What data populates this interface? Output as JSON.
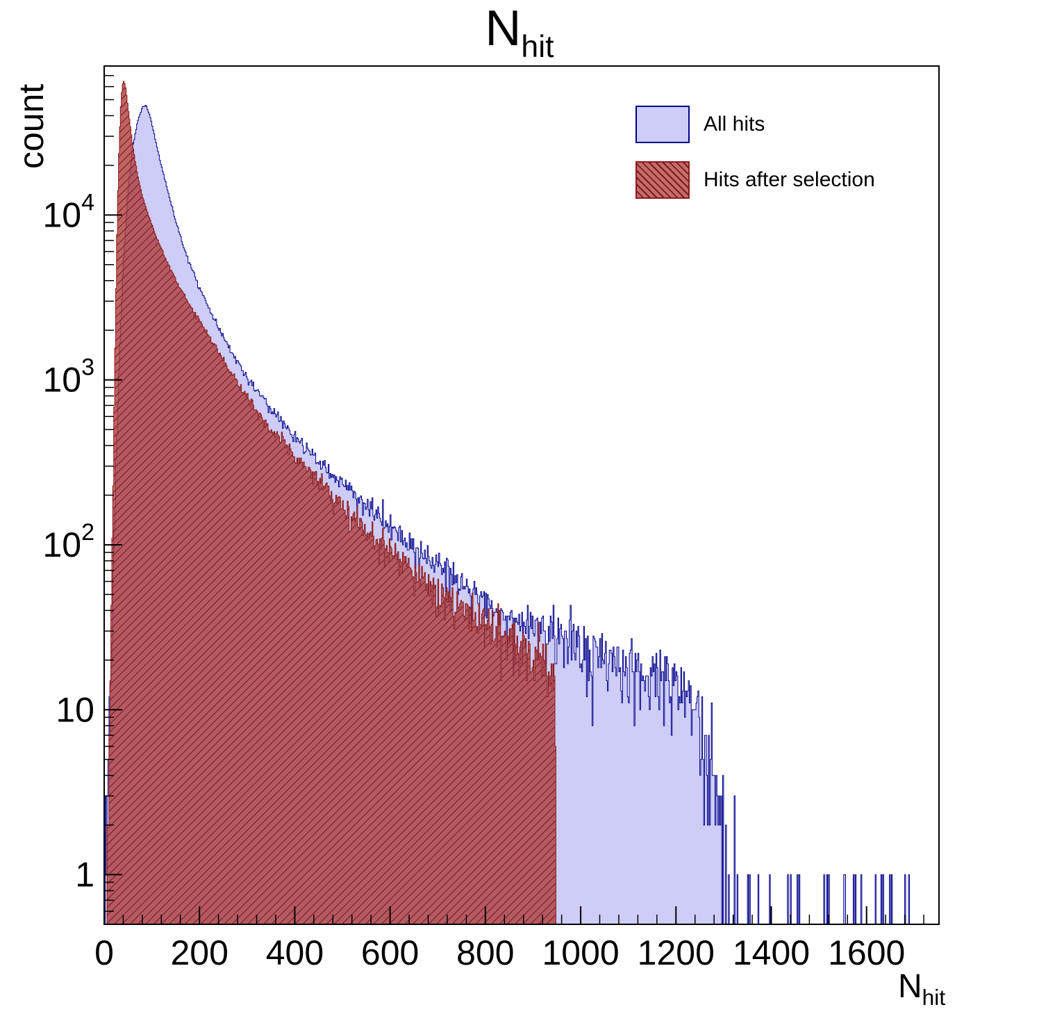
{
  "title": {
    "main": "N",
    "sub": "hit"
  },
  "axes": {
    "y_label": "count",
    "x_label_main": "N",
    "x_label_sub": "hit",
    "x_ticks": [
      0,
      200,
      400,
      600,
      800,
      1000,
      1200,
      1400,
      1600
    ],
    "x_minor_step": 40,
    "y_decade_exponents": [
      0,
      1,
      2,
      3,
      4
    ]
  },
  "legend": {
    "items": [
      {
        "label": "All hits"
      },
      {
        "label": "Hits after selection"
      }
    ]
  },
  "colors": {
    "blue_fill": "#cdcdf7",
    "blue_line": "#00008b",
    "red_fill": "#b23c3c",
    "red_fill_alpha": 0.8,
    "red_fill_legend": "#c96a6a",
    "red_line": "#8b1a1a",
    "red_hatch": "#6f1f1f",
    "frame": "#000000"
  },
  "chart_data": {
    "type": "histogram",
    "y_scale": "log",
    "x_range": [
      0,
      1752
    ],
    "y_range": [
      0.5,
      80000
    ],
    "bin_width": 2,
    "noise_seed": 20240612,
    "grid": false,
    "legend_position": "top-right",
    "title": "N_hit",
    "xlabel": "N_hit",
    "ylabel": "count",
    "series": [
      {
        "name": "All hits",
        "style": "blue-filled",
        "anchors": [
          [
            2,
            0.5
          ],
          [
            8,
            3
          ],
          [
            14,
            15
          ],
          [
            20,
            90
          ],
          [
            26,
            400
          ],
          [
            32,
            1400
          ],
          [
            40,
            5000
          ],
          [
            50,
            14000
          ],
          [
            60,
            26000
          ],
          [
            70,
            37000
          ],
          [
            80,
            45000
          ],
          [
            88,
            46000
          ],
          [
            96,
            40000
          ],
          [
            106,
            30000
          ],
          [
            118,
            21000
          ],
          [
            132,
            14500
          ],
          [
            150,
            9200
          ],
          [
            170,
            6000
          ],
          [
            200,
            3600
          ],
          [
            230,
            2350
          ],
          [
            260,
            1600
          ],
          [
            290,
            1150
          ],
          [
            320,
            860
          ],
          [
            360,
            610
          ],
          [
            400,
            450
          ],
          [
            440,
            345
          ],
          [
            480,
            265
          ],
          [
            520,
            207
          ],
          [
            560,
            163
          ],
          [
            600,
            128
          ],
          [
            650,
            95
          ],
          [
            700,
            73
          ],
          [
            750,
            57
          ],
          [
            800,
            46
          ],
          [
            850,
            38
          ],
          [
            900,
            32
          ],
          [
            950,
            28
          ],
          [
            1000,
            24
          ],
          [
            1050,
            21
          ],
          [
            1100,
            18
          ],
          [
            1140,
            16
          ],
          [
            1180,
            15
          ],
          [
            1220,
            13
          ],
          [
            1250,
            9
          ],
          [
            1270,
            5
          ],
          [
            1290,
            2.2
          ],
          [
            1310,
            0.8
          ],
          [
            1340,
            0.25
          ],
          [
            1420,
            0.14
          ],
          [
            1520,
            0.1
          ],
          [
            1620,
            0.09
          ],
          [
            1752,
            0.07
          ]
        ]
      },
      {
        "name": "Hits after selection",
        "style": "red-hatched",
        "anchors": [
          [
            6,
            0.5
          ],
          [
            12,
            8
          ],
          [
            16,
            60
          ],
          [
            20,
            400
          ],
          [
            24,
            2500
          ],
          [
            28,
            11000
          ],
          [
            32,
            30000
          ],
          [
            36,
            52000
          ],
          [
            40,
            66000
          ],
          [
            44,
            62000
          ],
          [
            50,
            45000
          ],
          [
            56,
            32000
          ],
          [
            64,
            22000
          ],
          [
            72,
            16500
          ],
          [
            82,
            12500
          ],
          [
            94,
            9700
          ],
          [
            110,
            7300
          ],
          [
            130,
            5300
          ],
          [
            155,
            3800
          ],
          [
            180,
            2800
          ],
          [
            210,
            2050
          ],
          [
            240,
            1480
          ],
          [
            270,
            1060
          ],
          [
            300,
            780
          ],
          [
            330,
            600
          ],
          [
            370,
            430
          ],
          [
            410,
            320
          ],
          [
            450,
            240
          ],
          [
            490,
            185
          ],
          [
            530,
            143
          ],
          [
            570,
            112
          ],
          [
            610,
            88
          ],
          [
            660,
            66
          ],
          [
            710,
            51
          ],
          [
            760,
            41
          ],
          [
            810,
            33
          ],
          [
            860,
            27
          ],
          [
            910,
            22
          ],
          [
            935,
            18
          ],
          [
            946,
            14
          ],
          [
            948,
            0
          ]
        ]
      }
    ]
  }
}
